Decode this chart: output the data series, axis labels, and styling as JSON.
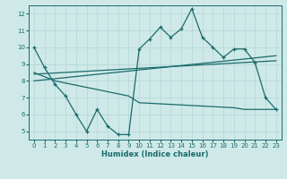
{
  "xlabel": "Humidex (Indice chaleur)",
  "xlim": [
    -0.5,
    23.5
  ],
  "ylim": [
    4.5,
    12.5
  ],
  "yticks": [
    5,
    6,
    7,
    8,
    9,
    10,
    11,
    12
  ],
  "xticks": [
    0,
    1,
    2,
    3,
    4,
    5,
    6,
    7,
    8,
    9,
    10,
    11,
    12,
    13,
    14,
    15,
    16,
    17,
    18,
    19,
    20,
    21,
    22,
    23
  ],
  "bg_color": "#cfe9e9",
  "line_color": "#1a6b6b",
  "grid_color": "#b8d8d8",
  "line1_x": [
    0,
    1,
    2,
    3,
    4,
    5,
    6,
    7,
    8,
    9,
    10,
    11,
    12,
    13,
    14,
    15,
    16,
    17,
    18,
    19,
    20,
    21,
    22,
    23
  ],
  "line1_y": [
    10.0,
    8.8,
    7.8,
    7.1,
    6.0,
    5.0,
    6.3,
    5.3,
    4.8,
    4.8,
    9.9,
    10.5,
    11.2,
    10.6,
    11.1,
    12.3,
    10.6,
    10.0,
    9.4,
    9.9,
    9.9,
    9.1,
    7.0,
    6.3
  ],
  "line2_x": [
    0,
    23
  ],
  "line2_y": [
    8.0,
    9.5
  ],
  "line3_x": [
    0,
    23
  ],
  "line3_y": [
    8.4,
    9.2
  ],
  "line4_x": [
    0,
    2,
    9,
    10,
    19,
    20,
    22,
    23
  ],
  "line4_y": [
    8.5,
    8.0,
    7.1,
    6.7,
    6.4,
    6.3,
    6.3,
    6.3
  ]
}
